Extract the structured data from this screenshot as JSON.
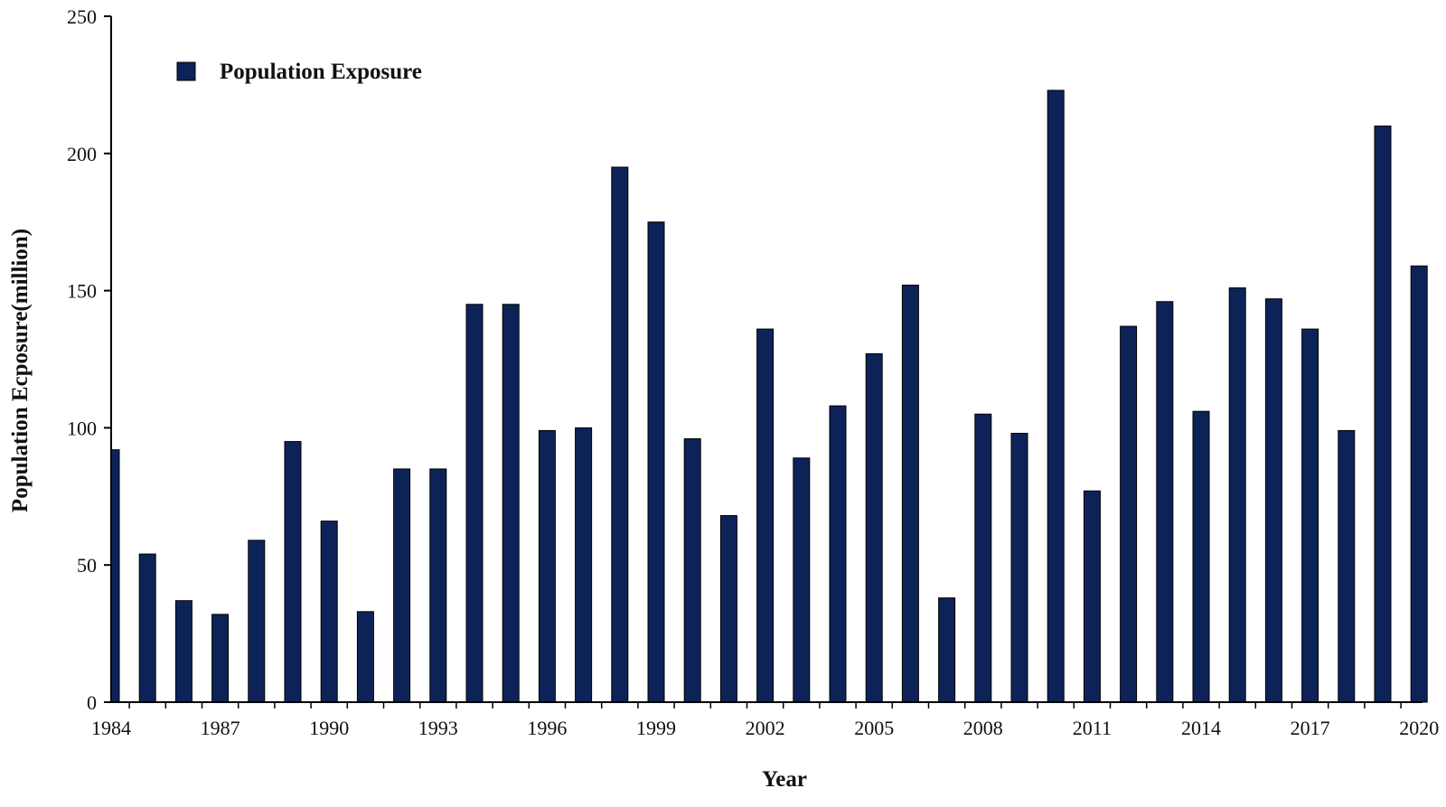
{
  "chart_data": {
    "type": "bar",
    "title": "",
    "xlabel": "Year",
    "ylabel": "Population Ecposure(million)",
    "ylim": [
      0,
      250
    ],
    "yticks": [
      0,
      50,
      100,
      150,
      200,
      250
    ],
    "xtick_labels": [
      "1984",
      "1987",
      "1990",
      "1993",
      "1996",
      "1999",
      "2002",
      "2005",
      "2008",
      "2011",
      "2014",
      "2017",
      "2020"
    ],
    "categories": [
      "1984",
      "1985",
      "1986",
      "1987",
      "1988",
      "1989",
      "1990",
      "1991",
      "1992",
      "1993",
      "1994",
      "1995",
      "1996",
      "1997",
      "1998",
      "1999",
      "2000",
      "2001",
      "2002",
      "2003",
      "2004",
      "2005",
      "2006",
      "2007",
      "2008",
      "2009",
      "2010",
      "2011",
      "2012",
      "2013",
      "2014",
      "2015",
      "2016",
      "2017",
      "2018",
      "2019",
      "2020"
    ],
    "series": [
      {
        "name": "Population Exposure",
        "color": "#0d2358",
        "values": [
          92,
          54,
          37,
          32,
          59,
          95,
          66,
          33,
          85,
          85,
          145,
          145,
          99,
          100,
          195,
          175,
          96,
          68,
          136,
          89,
          108,
          127,
          152,
          38,
          105,
          98,
          223,
          77,
          137,
          146,
          106,
          151,
          147,
          136,
          99,
          210,
          159
        ]
      }
    ],
    "grid": false,
    "legend": "top-left"
  }
}
